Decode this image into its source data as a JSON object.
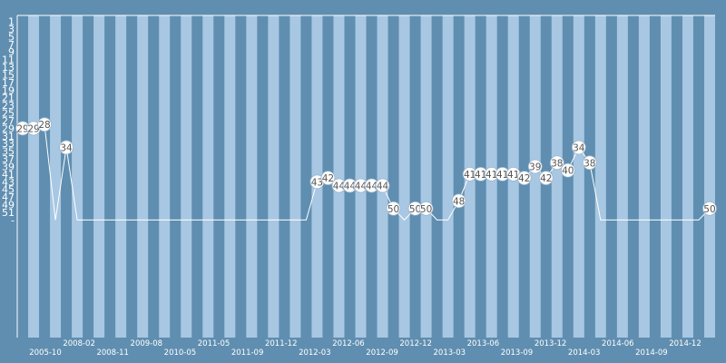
{
  "chart_data": {
    "type": "line",
    "title": "",
    "xlabel": "",
    "ylabel": "",
    "y_axis": "inverted rank",
    "ylim": [
      1,
      53
    ],
    "y_ticks": [
      1,
      3,
      5,
      7,
      9,
      11,
      13,
      15,
      17,
      19,
      21,
      23,
      25,
      27,
      29,
      31,
      33,
      35,
      37,
      39,
      41,
      43,
      45,
      47,
      49,
      51
    ],
    "y_bottom_label": "-",
    "x_tick_labels": [
      "2005-10",
      "2008-02",
      "2008-11",
      "2009-08",
      "2010-05",
      "2011-05",
      "2011-09",
      "2011-12",
      "2012-03",
      "2012-06",
      "2012-09",
      "2012-12",
      "2013-03",
      "2013-06",
      "2013-09",
      "2013-12",
      "2014-03",
      "2014-06",
      "2014-09",
      "2014-12"
    ],
    "series": [
      {
        "values": [
          29,
          29,
          28,
          null,
          34,
          null,
          null,
          null,
          null,
          null,
          null,
          null,
          null,
          null,
          null,
          null,
          null,
          null,
          null,
          null,
          null,
          null,
          null,
          null,
          null,
          null,
          null,
          43,
          42,
          44,
          44,
          44,
          44,
          44,
          50,
          null,
          50,
          50,
          null,
          null,
          48,
          41,
          41,
          41,
          41,
          41,
          42,
          39,
          42,
          38,
          40,
          34,
          38,
          null,
          null,
          null,
          null,
          null,
          null,
          null,
          null,
          null,
          null,
          50
        ]
      }
    ],
    "data_labels": [
      "29",
      "29",
      "28",
      "",
      "34",
      "",
      "",
      "",
      "",
      "",
      "",
      "",
      "",
      "",
      "",
      "",
      "",
      "",
      "",
      "",
      "",
      "",
      "",
      "",
      "",
      "",
      "",
      "43",
      "42",
      "44",
      "44",
      "44",
      "44",
      "44",
      "50",
      "",
      "50",
      "50",
      "",
      "",
      "48",
      "41",
      "41",
      "41",
      "41",
      "41",
      "42",
      "39",
      "42",
      "38",
      "40",
      "34",
      "38",
      "",
      "",
      "",
      "",
      "",
      "",
      "",
      "",
      "",
      "",
      "50"
    ],
    "style": {
      "background": "#5f8eb0",
      "stripe_light": "#a8c7e2",
      "line_color": "#ffffff",
      "marker_fill": "#ffffff",
      "label_color": "#555555"
    }
  }
}
